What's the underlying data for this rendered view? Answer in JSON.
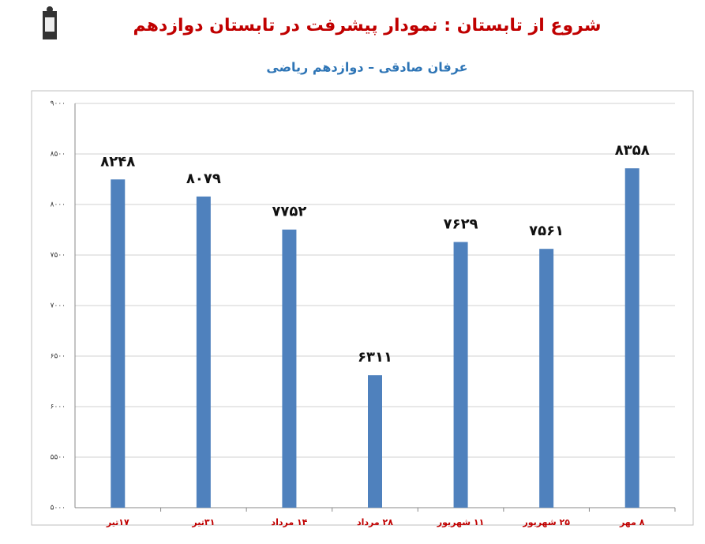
{
  "chart_data": {
    "type": "bar",
    "title": "شروع از تابستان : نمودار پیشرفت در تابستان دوازدهم",
    "subtitle": "عرفان صادقی – دوازدهم ریاضی",
    "categories": [
      "۱۷تیر",
      "۳۱تیر",
      "۱۴ مرداد",
      "۲۸ مرداد",
      "۱۱ شهریور",
      "۲۵ شهریور",
      "۸ مهر"
    ],
    "values": [
      8248,
      8079,
      7752,
      6311,
      7629,
      7561,
      8358
    ],
    "value_labels": [
      "۸۲۴۸",
      "۸۰۷۹",
      "۷۷۵۲",
      "۶۳۱۱",
      "۷۶۲۹",
      "۷۵۶۱",
      "۸۳۵۸"
    ],
    "color": "#4f81bd",
    "ylim": [
      5000,
      9000
    ],
    "yticks": [
      {
        "value": 5000,
        "label": "۵۰۰۰"
      },
      {
        "value": 5500,
        "label": "۵۵۰۰"
      },
      {
        "value": 6000,
        "label": "۶۰۰۰"
      },
      {
        "value": 6500,
        "label": "۶۵۰۰"
      },
      {
        "value": 7000,
        "label": "۷۰۰۰"
      },
      {
        "value": 7500,
        "label": "۷۵۰۰"
      },
      {
        "value": 8000,
        "label": "۸۰۰۰"
      },
      {
        "value": 8500,
        "label": "۸۵۰۰"
      },
      {
        "value": 9000,
        "label": "۹۰۰۰"
      }
    ],
    "grid": true
  }
}
